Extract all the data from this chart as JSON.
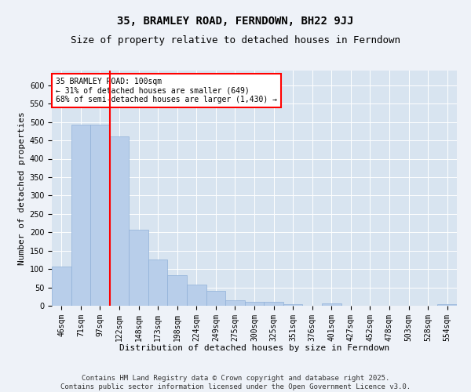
{
  "title": "35, BRAMLEY ROAD, FERNDOWN, BH22 9JJ",
  "subtitle": "Size of property relative to detached houses in Ferndown",
  "xlabel": "Distribution of detached houses by size in Ferndown",
  "ylabel": "Number of detached properties",
  "footer": "Contains HM Land Registry data © Crown copyright and database right 2025.\nContains public sector information licensed under the Open Government Licence v3.0.",
  "categories": [
    "46sqm",
    "71sqm",
    "97sqm",
    "122sqm",
    "148sqm",
    "173sqm",
    "198sqm",
    "224sqm",
    "249sqm",
    "275sqm",
    "300sqm",
    "325sqm",
    "351sqm",
    "376sqm",
    "401sqm",
    "427sqm",
    "452sqm",
    "478sqm",
    "503sqm",
    "528sqm",
    "554sqm"
  ],
  "values": [
    106,
    493,
    493,
    460,
    207,
    125,
    83,
    57,
    40,
    14,
    10,
    11,
    4,
    0,
    6,
    0,
    0,
    0,
    0,
    0,
    5
  ],
  "bar_color": "#b8ceea",
  "bar_edge_color": "#90b0d8",
  "vline_x": 2.5,
  "vline_color": "red",
  "annotation_text": "35 BRAMLEY ROAD: 100sqm\n← 31% of detached houses are smaller (649)\n68% of semi-detached houses are larger (1,430) →",
  "annotation_box_color": "white",
  "annotation_box_edge_color": "red",
  "ylim": [
    0,
    640
  ],
  "yticks": [
    0,
    50,
    100,
    150,
    200,
    250,
    300,
    350,
    400,
    450,
    500,
    550,
    600
  ],
  "background_color": "#eef2f8",
  "plot_background_color": "#d8e4f0",
  "grid_color": "white",
  "title_fontsize": 10,
  "subtitle_fontsize": 9,
  "axis_label_fontsize": 8,
  "tick_fontsize": 7,
  "footer_fontsize": 6.5,
  "annotation_fontsize": 7
}
